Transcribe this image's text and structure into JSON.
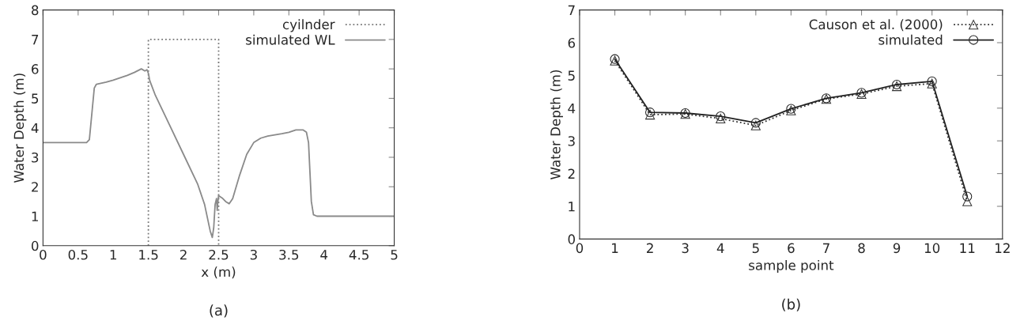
{
  "chart_data": [
    {
      "type": "line",
      "xlabel": "x (m)",
      "ylabel": "Water Depth (m)",
      "annotations": [
        "(a)"
      ],
      "xlim": [
        0,
        5
      ],
      "ylim": [
        0,
        8
      ],
      "xticks": [
        0,
        0.5,
        1,
        1.5,
        2,
        2.5,
        3,
        3.5,
        4,
        4.5,
        5
      ],
      "yticks": [
        0,
        1,
        2,
        3,
        4,
        5,
        6,
        7,
        8
      ],
      "grid": false,
      "legend": "top right",
      "series": [
        {
          "name": "cyilnder",
          "color": "#777777",
          "line_style": "dotted",
          "x": [
            1.5,
            1.5,
            2.5,
            2.5
          ],
          "values": [
            0,
            7,
            7,
            0
          ]
        },
        {
          "name": "simulated WL",
          "color": "#8a8a8a",
          "line_style": "solid",
          "x": [
            0,
            0.62,
            0.66,
            0.7,
            0.73,
            0.76,
            0.9,
            1.0,
            1.2,
            1.3,
            1.4,
            1.45,
            1.48,
            1.5,
            1.52,
            1.6,
            1.8,
            2.0,
            2.2,
            2.3,
            2.38,
            2.41,
            2.43,
            2.45,
            2.47,
            2.48,
            2.49,
            2.5,
            2.55,
            2.6,
            2.65,
            2.7,
            2.8,
            2.9,
            3.0,
            3.1,
            3.2,
            3.4,
            3.5,
            3.6,
            3.7,
            3.75,
            3.78,
            3.8,
            3.82,
            3.85,
            3.9,
            5.0
          ],
          "values": [
            3.5,
            3.5,
            3.6,
            4.6,
            5.35,
            5.48,
            5.55,
            5.62,
            5.78,
            5.88,
            6.0,
            5.93,
            5.97,
            5.85,
            5.6,
            5.1,
            4.1,
            3.1,
            2.1,
            1.4,
            0.5,
            0.28,
            0.6,
            1.4,
            1.6,
            1.2,
            1.5,
            1.7,
            1.62,
            1.5,
            1.42,
            1.6,
            2.4,
            3.1,
            3.5,
            3.65,
            3.72,
            3.8,
            3.85,
            3.93,
            3.93,
            3.85,
            3.5,
            2.5,
            1.5,
            1.05,
            1.0,
            1.0
          ]
        }
      ]
    },
    {
      "type": "line",
      "xlabel": "sample point",
      "ylabel": "Water Depth (m)",
      "annotations": [
        "(b)"
      ],
      "xlim": [
        0,
        12
      ],
      "ylim": [
        0,
        7
      ],
      "xticks": [
        0,
        1,
        2,
        3,
        4,
        5,
        6,
        7,
        8,
        9,
        10,
        11,
        12
      ],
      "yticks": [
        0,
        1,
        2,
        3,
        4,
        5,
        6,
        7
      ],
      "grid": false,
      "legend": "top right",
      "series": [
        {
          "name": "Causon et al. (2000)",
          "color": "#333333",
          "line_style": "dotted",
          "marker": "triangle",
          "x": [
            1,
            2,
            3,
            4,
            5,
            6,
            7,
            8,
            9,
            10,
            11
          ],
          "values": [
            5.45,
            3.8,
            3.82,
            3.68,
            3.47,
            3.93,
            4.28,
            4.43,
            4.67,
            4.75,
            1.15
          ]
        },
        {
          "name": "simulated",
          "color": "#222222",
          "line_style": "solid",
          "marker": "circle",
          "x": [
            1,
            2,
            3,
            4,
            5,
            6,
            7,
            8,
            9,
            10,
            11
          ],
          "values": [
            5.5,
            3.87,
            3.85,
            3.75,
            3.55,
            3.98,
            4.3,
            4.47,
            4.72,
            4.82,
            1.3
          ]
        }
      ]
    }
  ]
}
